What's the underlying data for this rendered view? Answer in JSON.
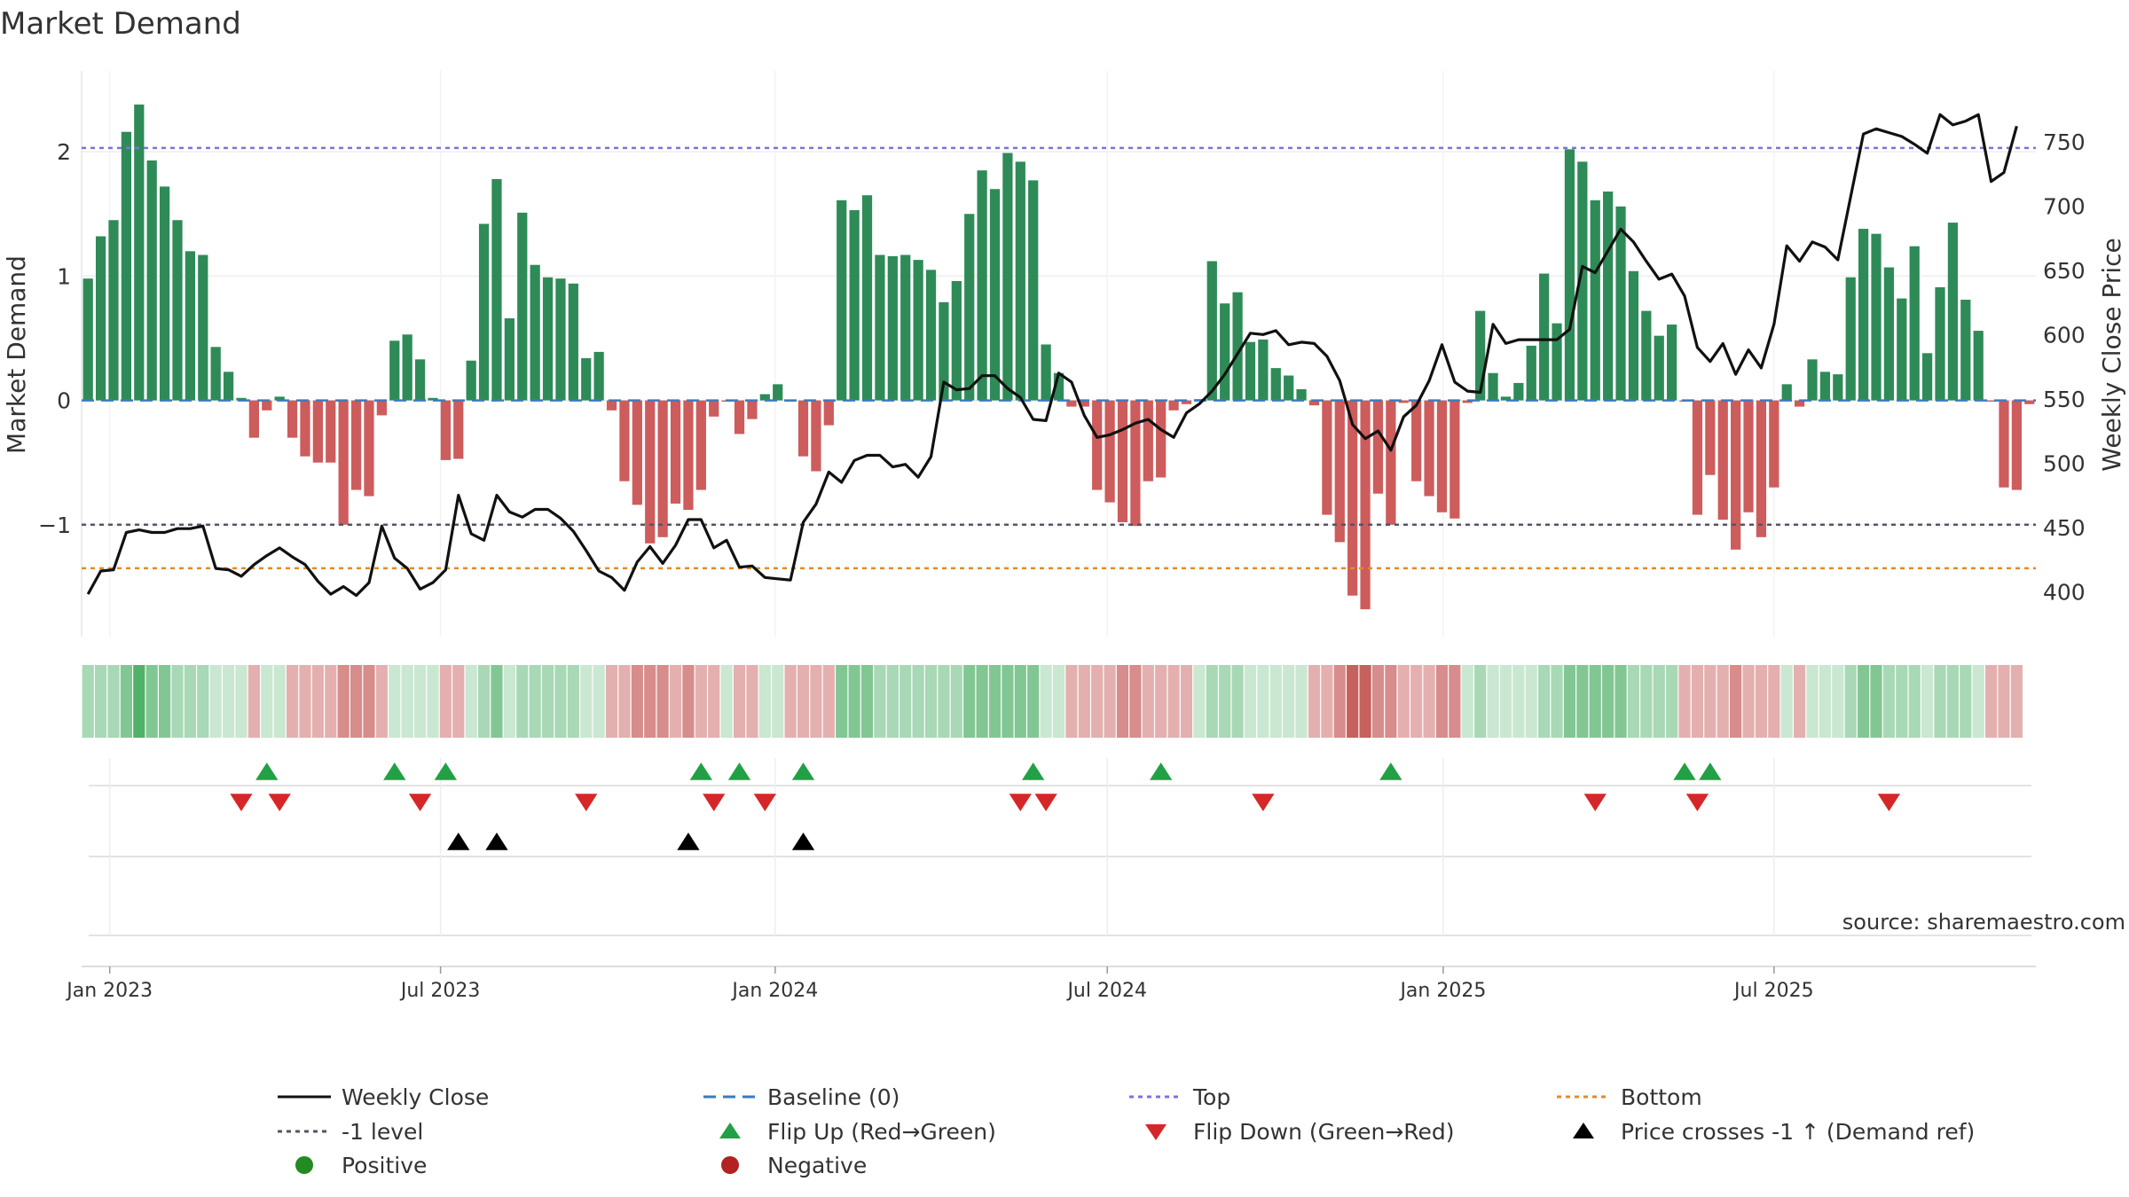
{
  "chart_data": {
    "type": "bar",
    "title": "Market Demand",
    "ylabel": "Market Demand",
    "y2label": "Weekly Close Price",
    "ylim": [
      -1.9,
      2.65
    ],
    "y2lim": [
      365,
      805
    ],
    "yticks": [
      {
        "value": 2,
        "label": "2"
      },
      {
        "value": 1,
        "label": "1"
      },
      {
        "value": 0,
        "label": "0"
      },
      {
        "value": -1,
        "label": "−1"
      }
    ],
    "y2ticks": [
      400,
      450,
      500,
      550,
      600,
      650,
      700,
      750
    ],
    "xticks": [
      {
        "index": 1.7,
        "label": "Jan 2023"
      },
      {
        "index": 27.6,
        "label": "Jul 2023"
      },
      {
        "index": 53.8,
        "label": "Jan 2024"
      },
      {
        "index": 79.8,
        "label": "Jul 2024"
      },
      {
        "index": 106.1,
        "label": "Jan 2025"
      },
      {
        "index": 132,
        "label": "Jul 2025"
      }
    ],
    "reference_lines": {
      "top": 2.03,
      "bottom": -1.35,
      "minus_one": -1,
      "baseline": 0
    },
    "demand_values": [
      0.98,
      1.32,
      1.45,
      2.16,
      2.38,
      1.93,
      1.72,
      1.45,
      1.2,
      1.17,
      0.43,
      0.23,
      0.02,
      -0.3,
      -0.08,
      0.03,
      -0.3,
      -0.45,
      -0.5,
      -0.5,
      -1.0,
      -0.72,
      -0.77,
      -0.12,
      0.48,
      0.53,
      0.33,
      0.02,
      -0.48,
      -0.47,
      0.32,
      1.42,
      1.78,
      0.66,
      1.51,
      1.09,
      0.99,
      0.98,
      0.94,
      0.34,
      0.39,
      -0.08,
      -0.65,
      -0.84,
      -1.15,
      -1.1,
      -0.83,
      -0.88,
      -0.72,
      -0.13,
      -0.01,
      -0.27,
      -0.15,
      0.05,
      0.13,
      -0.01,
      -0.45,
      -0.57,
      -0.2,
      1.61,
      1.53,
      1.65,
      1.17,
      1.16,
      1.17,
      1.13,
      1.05,
      0.79,
      0.96,
      1.5,
      1.85,
      1.7,
      1.99,
      1.92,
      1.77,
      0.45,
      0.22,
      -0.05,
      -0.05,
      -0.72,
      -0.82,
      -0.98,
      -1.01,
      -0.65,
      -0.62,
      -0.08,
      -0.03,
      0.01,
      1.12,
      0.78,
      0.87,
      0.47,
      0.49,
      0.26,
      0.2,
      0.09,
      -0.04,
      -0.92,
      -1.14,
      -1.57,
      -1.68,
      -0.75,
      -1.0,
      -0.02,
      -0.65,
      -0.77,
      -0.9,
      -0.95,
      -0.02,
      0.72,
      0.22,
      0.03,
      0.14,
      0.44,
      1.02,
      0.62,
      2.02,
      1.92,
      1.61,
      1.68,
      1.56,
      1.04,
      0.72,
      0.52,
      0.61,
      -0.01,
      -0.92,
      -0.6,
      -0.96,
      -1.2,
      -0.9,
      -1.1,
      -0.7,
      0.13,
      -0.05,
      0.33,
      0.23,
      0.21,
      0.99,
      1.38,
      1.34,
      1.07,
      0.82,
      1.24,
      0.38,
      0.91,
      1.43,
      0.81,
      0.56,
      -0.01,
      -0.7,
      -0.72,
      -0.03
    ],
    "close_values": [
      398,
      416,
      417,
      446,
      448,
      446,
      446,
      449,
      449,
      451,
      418,
      417,
      412,
      421,
      428,
      434,
      427,
      421,
      408,
      398,
      404,
      397,
      407,
      451,
      426,
      418,
      402,
      407,
      417,
      475,
      445,
      440,
      475,
      462,
      458,
      464,
      464,
      457,
      447,
      432,
      416,
      411,
      401,
      423,
      435,
      422,
      436,
      456,
      456,
      434,
      440,
      419,
      420,
      411,
      410,
      409,
      454,
      468,
      493,
      485,
      502,
      506,
      506,
      497,
      499,
      489,
      505,
      563,
      557,
      558,
      568,
      568,
      558,
      551,
      534,
      533,
      570,
      563,
      537,
      520,
      522,
      526,
      531,
      534,
      526,
      520,
      539,
      546,
      556,
      569,
      585,
      601,
      600,
      603,
      592,
      594,
      593,
      583,
      564,
      530,
      519,
      525,
      510,
      536,
      545,
      564,
      592,
      563,
      556,
      555,
      608,
      593,
      596,
      596,
      596,
      596,
      604,
      653,
      648,
      665,
      682,
      672,
      657,
      643,
      647,
      630,
      590,
      579,
      593,
      569,
      588,
      574,
      608,
      669,
      657,
      672,
      668,
      658,
      707,
      756,
      760,
      757,
      754,
      748,
      741,
      771,
      763,
      766,
      771,
      719,
      726,
      762
    ],
    "tile_levels": [
      1,
      1,
      1,
      2,
      3,
      2,
      2,
      1,
      1,
      1,
      0,
      0,
      0,
      -1,
      0,
      0,
      -1,
      -1,
      -1,
      -1,
      -2,
      -2,
      -2,
      -1,
      0,
      0,
      0,
      0,
      -1,
      -1,
      0,
      1,
      2,
      0,
      1,
      1,
      1,
      1,
      1,
      0,
      0,
      -1,
      -1,
      -2,
      -2,
      -2,
      -1,
      -2,
      -1,
      -1,
      0,
      -1,
      -1,
      0,
      0,
      -1,
      -1,
      -1,
      -1,
      2,
      2,
      2,
      1,
      1,
      1,
      1,
      1,
      1,
      1,
      2,
      2,
      2,
      2,
      2,
      2,
      0,
      0,
      -1,
      -1,
      -1,
      -1,
      -2,
      -2,
      -1,
      -1,
      -1,
      -1,
      0,
      1,
      1,
      1,
      0,
      0,
      0,
      0,
      0,
      -1,
      -1,
      -2,
      -3,
      -3,
      -2,
      -2,
      -1,
      -1,
      -1,
      -2,
      -2,
      0,
      1,
      0,
      0,
      0,
      0,
      1,
      1,
      2,
      2,
      2,
      2,
      2,
      1,
      1,
      1,
      1,
      -1,
      -1,
      -1,
      -1,
      -2,
      -1,
      -1,
      -1,
      0,
      -1,
      0,
      0,
      0,
      1,
      2,
      2,
      1,
      1,
      1,
      0,
      1,
      1,
      1,
      0,
      -1,
      -1,
      -1
    ],
    "flip_up_indices": [
      14,
      24,
      28,
      48,
      51,
      56,
      74,
      84,
      102,
      125,
      127
    ],
    "flip_down_indices": [
      12,
      15,
      26,
      39,
      49,
      53,
      73,
      75,
      92,
      118,
      126,
      141
    ],
    "price_cross_indices": [
      29,
      32,
      47,
      56
    ],
    "legend": [
      {
        "label": "Weekly Close",
        "marker": "line-solid",
        "color": "#111111"
      },
      {
        "label": "Baseline (0)",
        "marker": "line-dash",
        "color": "#3a7bbf"
      },
      {
        "label": "Top",
        "marker": "line-dot",
        "color": "#7b74d8"
      },
      {
        "label": "Bottom",
        "marker": "line-dot",
        "color": "#e08c2a"
      },
      {
        "label": "-1 level",
        "marker": "line-dot",
        "color": "#555566"
      },
      {
        "label": "Flip Up (Red→Green)",
        "marker": "triangle-up",
        "color": "#22a045"
      },
      {
        "label": "Flip Down (Green→Red)",
        "marker": "triangle-down",
        "color": "#d62728"
      },
      {
        "label": "Price crosses -1 ↑ (Demand ref)",
        "marker": "triangle-up",
        "color": "#000000"
      },
      {
        "label": "Positive",
        "marker": "circle",
        "color": "#228b22"
      },
      {
        "label": "Negative",
        "marker": "circle",
        "color": "#b22222"
      }
    ],
    "source": "source: sharemaestro.com"
  },
  "colors": {
    "positive_bar": "#2e8b57",
    "negative_bar": "#cd5c5c",
    "close_line": "#111111",
    "baseline": "#3a7bbf",
    "top_line": "#7b74d8",
    "bottom_line": "#e08c2a",
    "minus_one_line": "#555566",
    "flip_up": "#22a045",
    "flip_down": "#d62728",
    "price_cross": "#000000",
    "tile_positive": "#3fa85a",
    "tile_negative": "#c0504d"
  }
}
